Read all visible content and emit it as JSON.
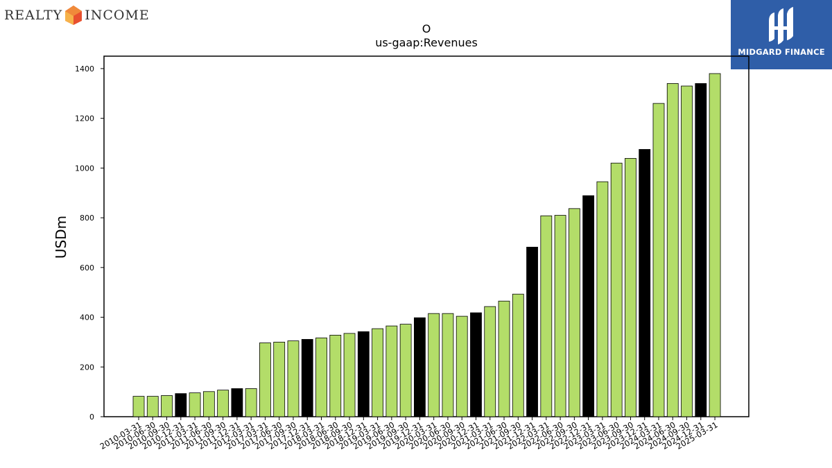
{
  "logos": {
    "left_text_a": "REALTY",
    "left_text_b": "INCOME",
    "right_text": "MIDGARD FINANCE"
  },
  "colors": {
    "bar_default": "#b3dd69",
    "bar_highlight": "#000000",
    "edge": "#000000",
    "right_logo_bg": "#2f5ea8",
    "left_logo_mark": "#e8502f"
  },
  "chart_data": {
    "type": "bar",
    "title": "O",
    "subtitle": "us-gaap:Revenues",
    "xlabel": "",
    "ylabel": "USDm",
    "ylim": [
      0,
      1450
    ],
    "yticks": [
      0,
      200,
      400,
      600,
      800,
      1000,
      1200,
      1400
    ],
    "grid": false,
    "categories": [
      "2010-03-31",
      "2010-06-30",
      "2010-09-30",
      "2010-12-31",
      "2011-03-31",
      "2011-06-30",
      "2011-09-30",
      "2011-12-31",
      "2012-03-31",
      "2017-03-31",
      "2017-06-30",
      "2017-09-30",
      "2017-12-31",
      "2018-03-31",
      "2018-06-30",
      "2018-09-30",
      "2018-12-31",
      "2019-03-31",
      "2019-06-30",
      "2019-09-30",
      "2019-12-31",
      "2020-03-31",
      "2020-06-30",
      "2020-09-30",
      "2020-12-31",
      "2021-03-31",
      "2021-06-30",
      "2021-09-30",
      "2021-12-31",
      "2022-03-31",
      "2022-06-30",
      "2022-09-30",
      "2022-12-31",
      "2023-03-31",
      "2023-06-30",
      "2023-09-30",
      "2023-12-31",
      "2024-03-31",
      "2024-06-30",
      "2024-09-30",
      "2024-12-31",
      "2025-03-31"
    ],
    "values": [
      82,
      82,
      85,
      93,
      96,
      101,
      107,
      113,
      113,
      297,
      300,
      305,
      311,
      317,
      328,
      335,
      342,
      354,
      365,
      372,
      398,
      415,
      415,
      404,
      418,
      443,
      465,
      493,
      682,
      808,
      810,
      837,
      889,
      945,
      1020,
      1039,
      1075,
      1260,
      1340,
      1330,
      1340,
      1380
    ],
    "highlight": [
      false,
      false,
      false,
      true,
      false,
      false,
      false,
      true,
      false,
      false,
      false,
      false,
      true,
      false,
      false,
      false,
      true,
      false,
      false,
      false,
      true,
      false,
      false,
      false,
      true,
      false,
      false,
      false,
      true,
      false,
      false,
      false,
      true,
      false,
      false,
      false,
      true,
      false,
      false,
      false,
      true,
      false
    ]
  }
}
